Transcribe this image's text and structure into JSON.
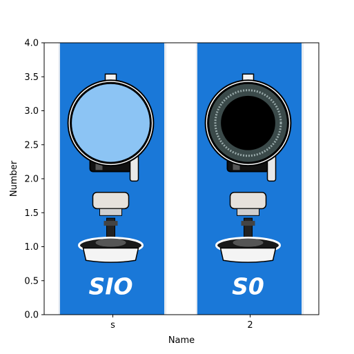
{
  "chart_data": {
    "type": "bar",
    "categories": [
      "s",
      "2"
    ],
    "values": [
      4.0,
      4.0
    ],
    "title": "",
    "xlabel": "Name",
    "ylabel": "Number",
    "ylim": [
      0,
      4.0
    ],
    "yticks": [
      "0.0",
      "0.5",
      "1.0",
      "1.5",
      "2.0",
      "2.5",
      "3.0",
      "3.5",
      "4.0"
    ],
    "grid": false,
    "bar_fill": "image",
    "bar_images": [
      {
        "text": "SIO",
        "lens": "light-blue"
      },
      {
        "text": "S0",
        "lens": "black"
      }
    ],
    "colors": {
      "bar_blue": "#1a78d8",
      "lens_light": "#8cc4f4",
      "lens_dark": "#000000",
      "frame": "#000000"
    }
  }
}
